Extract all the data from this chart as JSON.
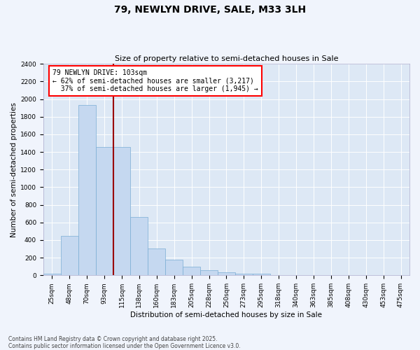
{
  "title": "79, NEWLYN DRIVE, SALE, M33 3LH",
  "subtitle": "Size of property relative to semi-detached houses in Sale",
  "xlabel": "Distribution of semi-detached houses by size in Sale",
  "ylabel": "Number of semi-detached properties",
  "footer_line1": "Contains HM Land Registry data © Crown copyright and database right 2025.",
  "footer_line2": "Contains public sector information licensed under the Open Government Licence v3.0.",
  "bar_labels": [
    "25sqm",
    "48sqm",
    "70sqm",
    "93sqm",
    "115sqm",
    "138sqm",
    "160sqm",
    "183sqm",
    "205sqm",
    "228sqm",
    "250sqm",
    "273sqm",
    "295sqm",
    "318sqm",
    "340sqm",
    "363sqm",
    "385sqm",
    "408sqm",
    "430sqm",
    "453sqm",
    "475sqm"
  ],
  "bar_values": [
    22,
    450,
    1935,
    1455,
    1455,
    665,
    305,
    175,
    95,
    62,
    35,
    20,
    20,
    0,
    0,
    0,
    0,
    0,
    0,
    0,
    0
  ],
  "bar_color": "#c5d8f0",
  "bar_edge_color": "#7aadd4",
  "property_label": "79 NEWLYN DRIVE: 103sqm",
  "pct_smaller": 62,
  "count_smaller": 3217,
  "pct_larger": 37,
  "count_larger": 1945,
  "vline_x": 3.5,
  "ylim": [
    0,
    2400
  ],
  "yticks": [
    0,
    200,
    400,
    600,
    800,
    1000,
    1200,
    1400,
    1600,
    1800,
    2000,
    2200,
    2400
  ],
  "fig_bg": "#f0f4fc",
  "plot_bg": "#dde8f5",
  "grid_color": "#ffffff",
  "title_fontsize": 10,
  "subtitle_fontsize": 8,
  "tick_fontsize": 6.5,
  "ylabel_fontsize": 7.5,
  "xlabel_fontsize": 7.5,
  "footer_fontsize": 5.5,
  "annot_fontsize": 7
}
